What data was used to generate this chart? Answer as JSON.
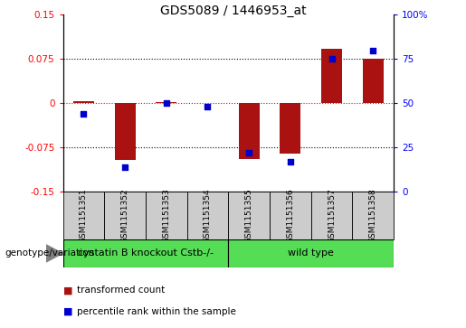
{
  "title": "GDS5089 / 1446953_at",
  "samples": [
    "GSM1151351",
    "GSM1151352",
    "GSM1151353",
    "GSM1151354",
    "GSM1151355",
    "GSM1151356",
    "GSM1151357",
    "GSM1151358"
  ],
  "transformed_count": [
    0.003,
    -0.096,
    0.002,
    0.001,
    -0.095,
    -0.085,
    0.092,
    0.075
  ],
  "percentile_rank": [
    44,
    14,
    50,
    48,
    22,
    17,
    75,
    80
  ],
  "left_ylim": [
    -0.15,
    0.15
  ],
  "right_ylim": [
    0,
    100
  ],
  "left_yticks": [
    -0.15,
    -0.075,
    0,
    0.075,
    0.15
  ],
  "right_yticks": [
    0,
    25,
    50,
    75,
    100
  ],
  "left_yticklabels": [
    "-0.15",
    "-0.075",
    "0",
    "0.075",
    "0.15"
  ],
  "right_yticklabels": [
    "0",
    "25",
    "50",
    "75",
    "100%"
  ],
  "bar_color": "#aa1111",
  "dot_color": "#0000cc",
  "group1_label": "cystatin B knockout Cstb-/-",
  "group2_label": "wild type",
  "group1_samples": [
    0,
    1,
    2,
    3
  ],
  "group2_samples": [
    4,
    5,
    6,
    7
  ],
  "group_label_left": "genotype/variation",
  "legend_red": "transformed count",
  "legend_blue": "percentile rank within the sample",
  "green_color": "#55dd55",
  "bar_width": 0.5,
  "title_fontsize": 10,
  "tick_fontsize": 7.5,
  "sample_fontsize": 6.5,
  "group_fontsize": 8,
  "legend_fontsize": 7.5
}
